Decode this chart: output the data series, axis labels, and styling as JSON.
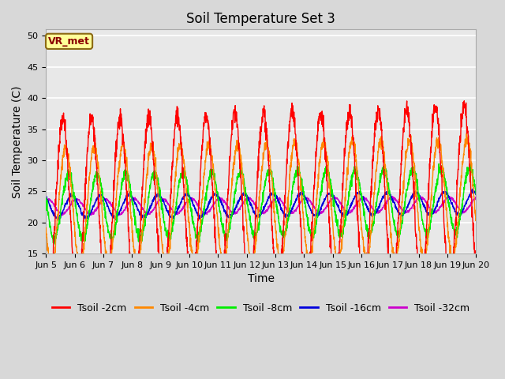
{
  "title": "Soil Temperature Set 3",
  "xlabel": "Time",
  "ylabel": "Soil Temperature (C)",
  "ylim": [
    15,
    51
  ],
  "yticks": [
    15,
    20,
    25,
    30,
    35,
    40,
    45,
    50
  ],
  "xlim_days": [
    5,
    20
  ],
  "xtick_labels": [
    "Jun 5",
    "Jun 6",
    "Jun 7",
    "Jun 8",
    "Jun 9",
    "Jun 10",
    "Jun 11",
    "Jun 12",
    "Jun 13",
    "Jun 14",
    "Jun 15",
    "Jun 16",
    "Jun 17",
    "Jun 18",
    "Jun 19",
    "Jun 20"
  ],
  "colors": {
    "Tsoil -2cm": "#ff0000",
    "Tsoil -4cm": "#ff8800",
    "Tsoil -8cm": "#00ee00",
    "Tsoil -16cm": "#0000dd",
    "Tsoil -32cm": "#cc00cc"
  },
  "annotation_text": "VR_met",
  "annotation_color": "#8B0000",
  "annotation_bg": "#ffff99",
  "annotation_border": "#8B6914",
  "background_color": "#d8d8d8",
  "plot_bg": "#e8e8e8",
  "grid_color": "#ffffff",
  "title_fontsize": 12,
  "label_fontsize": 10,
  "tick_fontsize": 8,
  "legend_fontsize": 9,
  "points_per_day": 144,
  "num_days": 15,
  "start_day": 5,
  "base_temp": 22.5,
  "amp_2cm": 14.0,
  "amp_4cm": 9.5,
  "amp_8cm": 5.2,
  "amp_16cm": 1.8,
  "amp_32cm": 1.2,
  "phase_2cm": 0.0,
  "phase_4cm": 0.1,
  "phase_8cm": 0.2,
  "phase_16cm": 0.32,
  "phase_32cm": 0.48,
  "trend": 0.14,
  "noise_2cm": 0.8,
  "noise_4cm": 0.5,
  "noise_8cm": 0.4,
  "noise_16cm": 0.15,
  "noise_32cm": 0.1
}
